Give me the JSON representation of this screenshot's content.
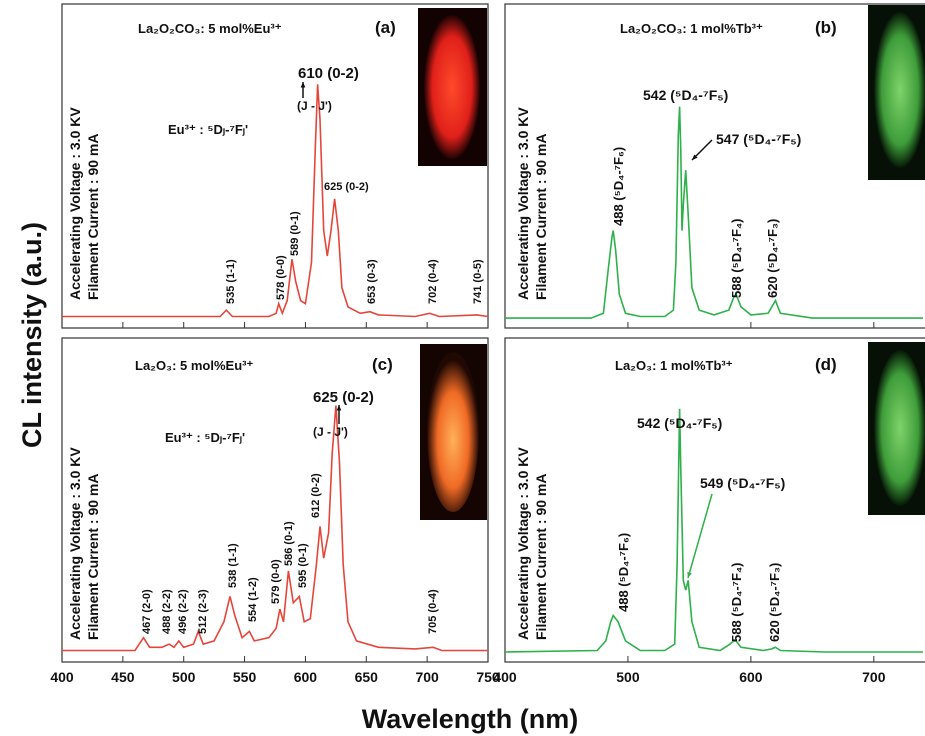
{
  "figure": {
    "x_label": "Wavelength (nm)",
    "y_label": "CL intensity (a.u.)"
  },
  "chart_data": [
    {
      "type": "line",
      "title": "La₂O₂CO₃: 5 mol%Eu³⁺",
      "side_labels": [
        "Accelerating Voltage : 3.0 KV",
        "Filament Current : 90 mA"
      ],
      "annotations": [
        "(a)",
        "610 (0-2)",
        "(J - J')",
        "Eu³⁺ : ⁵Dⱼ-⁷Fⱼ'",
        "625 (0-2)",
        "589 (0-1)",
        "578 (0-0)",
        "535 (1-1)",
        "653 (0-3)",
        "702 (0-4)",
        "741 (0-5)"
      ],
      "xlim": [
        400,
        750
      ],
      "ylim": [
        0,
        100
      ],
      "x": [
        400,
        460,
        530,
        535,
        540,
        570,
        576,
        578,
        581,
        585,
        589,
        592,
        596,
        600,
        605,
        608,
        610,
        612,
        615,
        618,
        621,
        624,
        627,
        630,
        635,
        645,
        653,
        660,
        690,
        702,
        710,
        741,
        750
      ],
      "series": [
        {
          "color": "#e5463a",
          "values": [
            3,
            3,
            3,
            5,
            3,
            3,
            4,
            7,
            4,
            8,
            21,
            14,
            8,
            7,
            20,
            55,
            76,
            65,
            30,
            22,
            30,
            40,
            30,
            12,
            6,
            4,
            4.5,
            3.5,
            3,
            4,
            3,
            3.5,
            3
          ]
        }
      ]
    },
    {
      "type": "line",
      "title": "La₂O₂CO₃: 1 mol%Tb³⁺",
      "side_labels": [
        "Accelerating Voltage : 3.0 KV",
        "Filament Current : 90 mA"
      ],
      "annotations": [
        "(b)",
        "542 (⁵D₄-⁷F₅)",
        "547 (⁵D₄-⁷F₅)",
        "488 (⁵D₄-⁷F₆)",
        "588 (⁵D₄-⁷F₄)",
        "620 (⁵D₄-⁷F₃)"
      ],
      "xlim": [
        400,
        740
      ],
      "ylim": [
        0,
        100
      ],
      "x": [
        400,
        470,
        480,
        484,
        487,
        488,
        490,
        493,
        498,
        510,
        530,
        537,
        539,
        541,
        542,
        543,
        544,
        545,
        547,
        549,
        552,
        558,
        570,
        582,
        586,
        588,
        592,
        600,
        614,
        620,
        624,
        650,
        700,
        740
      ],
      "series": [
        {
          "color": "#2eb14a",
          "values": [
            2.5,
            2.5,
            4,
            18,
            28,
            30,
            24,
            10,
            4,
            3,
            3,
            5,
            20,
            60,
            69,
            55,
            30,
            38,
            49,
            35,
            12,
            5,
            3.5,
            5,
            9,
            10,
            6,
            3.5,
            4,
            8,
            4,
            2.5,
            2.5,
            2.5
          ]
        }
      ]
    },
    {
      "type": "line",
      "title": "La₂O₃: 5 mol%Eu³⁺",
      "side_labels": [
        "Accelerating Voltage : 3.0 KV",
        "Filament Current : 90 mA"
      ],
      "annotations": [
        "(c)",
        "625 (0-2)",
        "(J - J')",
        "Eu³⁺ : ⁵Dⱼ-⁷Fⱼ'",
        "467 (2-0)",
        "488 (2-2)",
        "496 (2-2)",
        "512 (2-3)",
        "538 (1-1)",
        "554 (1-2)",
        "579 (0-0)",
        "586 (0-1)",
        "595 (0-1)",
        "612 (0-2)",
        "705 (0-4)"
      ],
      "xlim": [
        400,
        750
      ],
      "ylim": [
        0,
        100
      ],
      "xticks": [
        400,
        450,
        500,
        550,
        600,
        650,
        700,
        750
      ],
      "x": [
        400,
        460,
        467,
        472,
        482,
        488,
        492,
        496,
        500,
        508,
        512,
        516,
        525,
        533,
        538,
        542,
        548,
        554,
        558,
        570,
        576,
        579,
        582,
        586,
        590,
        595,
        599,
        604,
        609,
        612,
        615,
        619,
        622,
        625,
        628,
        631,
        635,
        642,
        660,
        690,
        705,
        712,
        750
      ],
      "series": [
        {
          "color": "#e5463a",
          "values": [
            3,
            3,
            7,
            4,
            4,
            5,
            4,
            6,
            4,
            5,
            9,
            5,
            6,
            12,
            20,
            14,
            7,
            9,
            6,
            7,
            10,
            16,
            12,
            28,
            18,
            20,
            12,
            13,
            30,
            42,
            32,
            40,
            65,
            80,
            62,
            30,
            12,
            6,
            4,
            3.5,
            4,
            3,
            3
          ]
        }
      ]
    },
    {
      "type": "line",
      "title": "La₂O₃: 1 mol%Tb³⁺",
      "side_labels": [
        "Accelerating Voltage : 3.0 KV",
        "Filament Current : 90 mA"
      ],
      "annotations": [
        "(d)",
        "542 (⁵D₄-⁷F₅)",
        "549 (⁵D₄-⁷F₅)",
        "488 (⁵D₄-⁷F₆)",
        "588 (⁵D₄-⁷F₄)",
        "620 (⁵D₄-⁷F₃)"
      ],
      "xlim": [
        400,
        740
      ],
      "ylim": [
        0,
        100
      ],
      "xticks": [
        400,
        500,
        600,
        700
      ],
      "x": [
        400,
        475,
        482,
        486,
        488,
        492,
        498,
        510,
        530,
        538,
        540,
        542,
        543,
        545,
        547,
        549,
        552,
        558,
        575,
        583,
        586,
        588,
        592,
        610,
        617,
        620,
        624,
        660,
        740
      ],
      "series": [
        {
          "color": "#2eb14a",
          "values": [
            2.5,
            3,
            6,
            12,
            14,
            12,
            6,
            3,
            3,
            5,
            30,
            79,
            60,
            25,
            22,
            25,
            12,
            4,
            3,
            5,
            6,
            6,
            4,
            3,
            3.5,
            4,
            3,
            2.5,
            2.5
          ]
        }
      ]
    }
  ]
}
